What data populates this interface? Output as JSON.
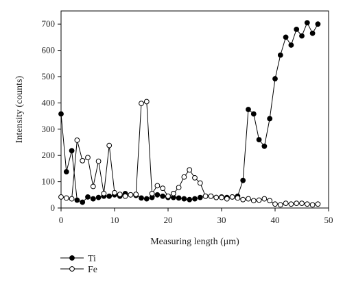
{
  "chart_data": {
    "type": "line",
    "xlabel": "Measuring length (μm)",
    "ylabel": "Intensity (counts)",
    "xlim": [
      0,
      50
    ],
    "ylim": [
      0,
      750
    ],
    "xticks": [
      0,
      10,
      20,
      30,
      40,
      50
    ],
    "yticks": [
      0,
      100,
      200,
      300,
      400,
      500,
      600,
      700
    ],
    "grid": false,
    "legend_position": "bottom-left",
    "series": [
      {
        "name": "Ti",
        "marker": "filled-circle",
        "color": "#000000",
        "x": [
          0,
          1,
          2,
          3,
          4,
          5,
          6,
          7,
          8,
          9,
          10,
          11,
          12,
          13,
          14,
          15,
          16,
          17,
          18,
          19,
          20,
          21,
          22,
          23,
          24,
          25,
          26,
          27,
          28,
          29,
          30,
          31,
          32,
          33,
          34,
          35,
          36,
          37,
          38,
          39,
          40,
          41,
          42,
          43,
          44,
          45,
          46,
          47,
          48
        ],
        "y": [
          358,
          138,
          218,
          30,
          22,
          42,
          35,
          40,
          45,
          45,
          50,
          45,
          55,
          50,
          48,
          38,
          35,
          40,
          50,
          45,
          40,
          40,
          38,
          35,
          32,
          35,
          40,
          45,
          45,
          40,
          42,
          40,
          42,
          45,
          105,
          375,
          358,
          260,
          235,
          340,
          492,
          582,
          650,
          620,
          680,
          655,
          705,
          665,
          700
        ]
      },
      {
        "name": "Fe",
        "marker": "open-circle",
        "color": "#000000",
        "x": [
          0,
          1,
          2,
          3,
          4,
          5,
          6,
          7,
          8,
          9,
          10,
          11,
          12,
          13,
          14,
          15,
          16,
          17,
          18,
          19,
          20,
          21,
          22,
          23,
          24,
          25,
          26,
          27,
          28,
          29,
          30,
          31,
          32,
          33,
          34,
          35,
          36,
          37,
          38,
          39,
          40,
          41,
          42,
          43,
          44,
          45,
          46,
          47,
          48
        ],
        "y": [
          42,
          38,
          35,
          258,
          180,
          192,
          82,
          178,
          55,
          238,
          58,
          52,
          45,
          50,
          52,
          398,
          405,
          55,
          85,
          75,
          45,
          55,
          78,
          118,
          145,
          115,
          95,
          45,
          45,
          40,
          40,
          35,
          42,
          38,
          32,
          35,
          28,
          30,
          35,
          28,
          15,
          12,
          18,
          15,
          18,
          18,
          15,
          12,
          15
        ]
      }
    ]
  }
}
